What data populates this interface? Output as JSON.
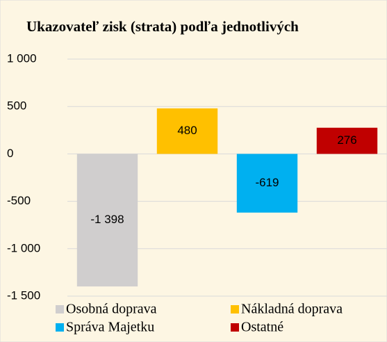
{
  "chart_data": {
    "type": "bar",
    "title": "Ukazovateľ zisk (strata) podľa jednotlivých",
    "categories": [
      "Osobná doprava",
      "Nákladná doprava",
      "Správa Majetku",
      "Ostatné"
    ],
    "values": [
      -1398,
      480,
      -619,
      276
    ],
    "value_labels": [
      "-1 398",
      "480",
      "-619",
      "276"
    ],
    "colors": [
      "#d0cece",
      "#ffc000",
      "#00b0f0",
      "#c00000"
    ],
    "ylim": [
      -1500,
      1000
    ],
    "yticks": [
      {
        "value": -1500,
        "label": "-1 500"
      },
      {
        "value": -1000,
        "label": "-1 000"
      },
      -500,
      0,
      500,
      {
        "value": 1000,
        "label": "1 000"
      }
    ],
    "grid": true,
    "legend": "bottom"
  }
}
